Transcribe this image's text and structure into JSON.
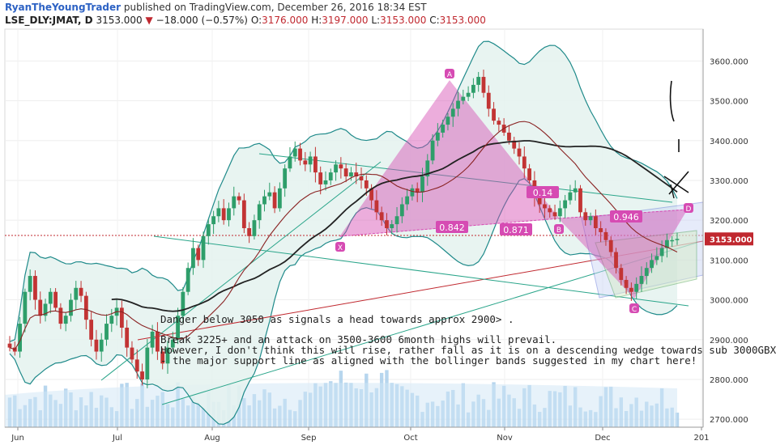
{
  "header": {
    "author": "RyanTheYoungTrader",
    "published_text": "published on TradingView.com, December 26, 2016 18:34 EST",
    "symbol": "LSE_DLY:JMAT, D",
    "last": "3153.000",
    "change": "−18.000 (−0.57%)",
    "o_label": "O:",
    "o_value": "3176.000",
    "h_label": "H:",
    "h_value": "3197.000",
    "l_label": "L:",
    "l_value": "3153.000",
    "c_label": "C:",
    "c_value": "3153.000"
  },
  "colors": {
    "up": "#2e9e6a",
    "down": "#c23434",
    "bb": "#1f8a8a",
    "bb_fill": "#e4f2ef",
    "pattern": "#d64bb3",
    "black_ma": "#222222",
    "red_ma": "#8a2323",
    "volume": "#9fc8e8",
    "price_badge": "#c0282f",
    "wedge_blue": "#5a6fd8"
  },
  "annotations": {
    "line1": "Danger below 3050 as signals a head towards approx 2900> .",
    "line2": "Break 3225+ and an attack on 3500-3600 6month highs will prevail.",
    "line3": " However, I don't think this will rise, rather fall as it is on a descending wedge towards sub 3000GBX",
    "line4": "- the major support line as aligned with the bollinger bands suggested in my chart here!"
  },
  "chart_data": {
    "type": "candlestick",
    "price_range": [
      2680,
      3680
    ],
    "y_ticks": [
      "3600.000",
      "3500.000",
      "3400.000",
      "3300.000",
      "3200.000",
      "3100.000",
      "3000.000",
      "2900.000",
      "2800.000",
      "2700.000"
    ],
    "x_ticks": [
      "Jun",
      "Jul",
      "Aug",
      "Sep",
      "Oct",
      "Nov",
      "Dec",
      "201"
    ],
    "current_price": "3153.000",
    "pattern_points": [
      {
        "label": "X",
        "value": 3160
      },
      {
        "label": "A",
        "value": 3570
      },
      {
        "label": "B",
        "value": 3180
      },
      {
        "label": "C",
        "value": 2995
      },
      {
        "label": "D",
        "value": 3225
      }
    ],
    "ratios": [
      "0.842",
      "0.871",
      "0.946",
      "0.14"
    ],
    "close_series": [
      2880,
      2870,
      2940,
      3020,
      3060,
      3000,
      2960,
      2990,
      3020,
      2980,
      2940,
      2960,
      3000,
      3030,
      3010,
      2950,
      2900,
      2870,
      2900,
      2940,
      2960,
      2980,
      2930,
      2880,
      2850,
      2820,
      2800,
      2880,
      2920,
      2870,
      2840,
      2880,
      2900,
      2960,
      3020,
      3080,
      3130,
      3100,
      3160,
      3190,
      3210,
      3230,
      3200,
      3230,
      3260,
      3250,
      3180,
      3160,
      3200,
      3240,
      3260,
      3270,
      3230,
      3280,
      3330,
      3360,
      3380,
      3350,
      3340,
      3360,
      3320,
      3290,
      3300,
      3320,
      3340,
      3330,
      3310,
      3320,
      3310,
      3300,
      3280,
      3250,
      3220,
      3200,
      3180,
      3190,
      3210,
      3240,
      3260,
      3280,
      3270,
      3310,
      3350,
      3400,
      3420,
      3440,
      3460,
      3480,
      3500,
      3510,
      3520,
      3540,
      3560,
      3520,
      3480,
      3450,
      3440,
      3420,
      3400,
      3380,
      3360,
      3330,
      3300,
      3260,
      3240,
      3230,
      3220,
      3210,
      3230,
      3250,
      3270,
      3280,
      3220,
      3200,
      3210,
      3180,
      3170,
      3150,
      3120,
      3080,
      3050,
      3030,
      3020,
      3040,
      3060,
      3080,
      3100,
      3110,
      3130,
      3150,
      3150,
      3153
    ]
  }
}
